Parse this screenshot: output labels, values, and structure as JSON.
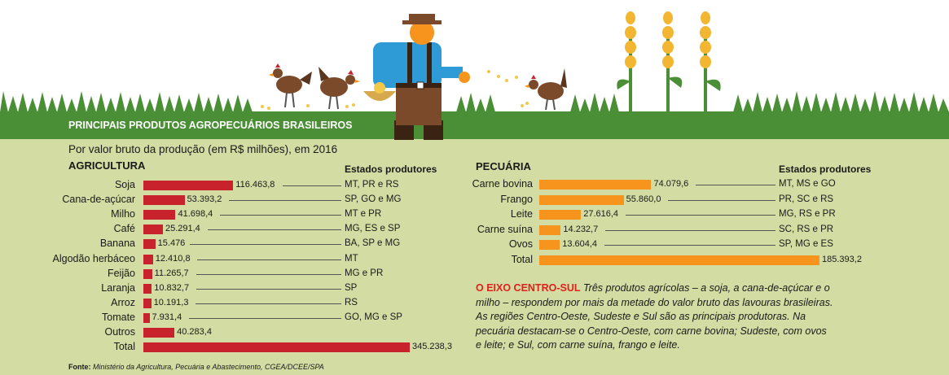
{
  "title": "PRINCIPAIS PRODUTOS AGROPECUÁRIOS BRASILEIROS",
  "subtitle": "Por valor bruto da produção (em R$ milhões), em 2016",
  "states_header": "Estados produtores",
  "colors": {
    "agri": "#c8232c",
    "pec": "#f7941d",
    "grass": "#4a8f35",
    "bg": "#d3dca3",
    "text_accent": "#e2211c"
  },
  "chart_data": [
    {
      "type": "bar",
      "title": "AGRICULTURA",
      "categories": [
        "Soja",
        "Cana-de-açúcar",
        "Milho",
        "Café",
        "Banana",
        "Algodão herbáceo",
        "Feijão",
        "Laranja",
        "Arroz",
        "Tomate",
        "Outros",
        "Total"
      ],
      "values": [
        116463.8,
        53393.2,
        41698.4,
        25291.4,
        15476,
        12410.8,
        11265.7,
        10832.7,
        10191.3,
        7931.4,
        40283.4,
        345238.3
      ],
      "value_labels": [
        "116.463,8",
        "53.393,2",
        "41.698,4",
        "25.291,4",
        "15.476",
        "12.410,8",
        "11.265,7",
        "10.832,7",
        "10.191,3",
        "7.931,4",
        "40.283,4",
        "345.238,3"
      ],
      "states": [
        "MT, PR e RS",
        "SP, GO e MG",
        "MT e PR",
        "MG, ES e SP",
        "BA, SP e MG",
        "MT",
        "MG e PR",
        "SP",
        "RS",
        "GO, MG e SP",
        "",
        ""
      ]
    },
    {
      "type": "bar",
      "title": "PECUÁRIA",
      "categories": [
        "Carne bovina",
        "Frango",
        "Leite",
        "Carne suína",
        "Ovos",
        "Total"
      ],
      "values": [
        74079.6,
        55860.0,
        27616.4,
        14232.7,
        13604.4,
        185393.2
      ],
      "value_labels": [
        "74.079,6",
        "55.860,0",
        "27.616,4",
        "14.232,7",
        "13.604,4",
        "185.393,2"
      ],
      "states": [
        "MT, MS e GO",
        "PR, SC e RS",
        "MG, RS e PR",
        "SC, RS e PR",
        "SP, MG e ES",
        ""
      ]
    }
  ],
  "note": {
    "lead": "O EIXO CENTRO-SUL",
    "text": "Três produtos agrícolas – a soja, a cana-de-açúcar e o milho – respondem por mais da metade do valor bruto das lavouras brasileiras. As regiões Centro-Oeste, Sudeste e Sul são as principais produtoras. Na pecuária destacam-se o Centro-Oeste, com carne bovina; Sudeste, com ovos e leite; e Sul, com carne suína, frango e leite."
  },
  "source": {
    "label": "Fonte:",
    "text": "Ministério da Agricultura, Pecuária e Abastecimento, CGEA/DCEE/SPA"
  }
}
